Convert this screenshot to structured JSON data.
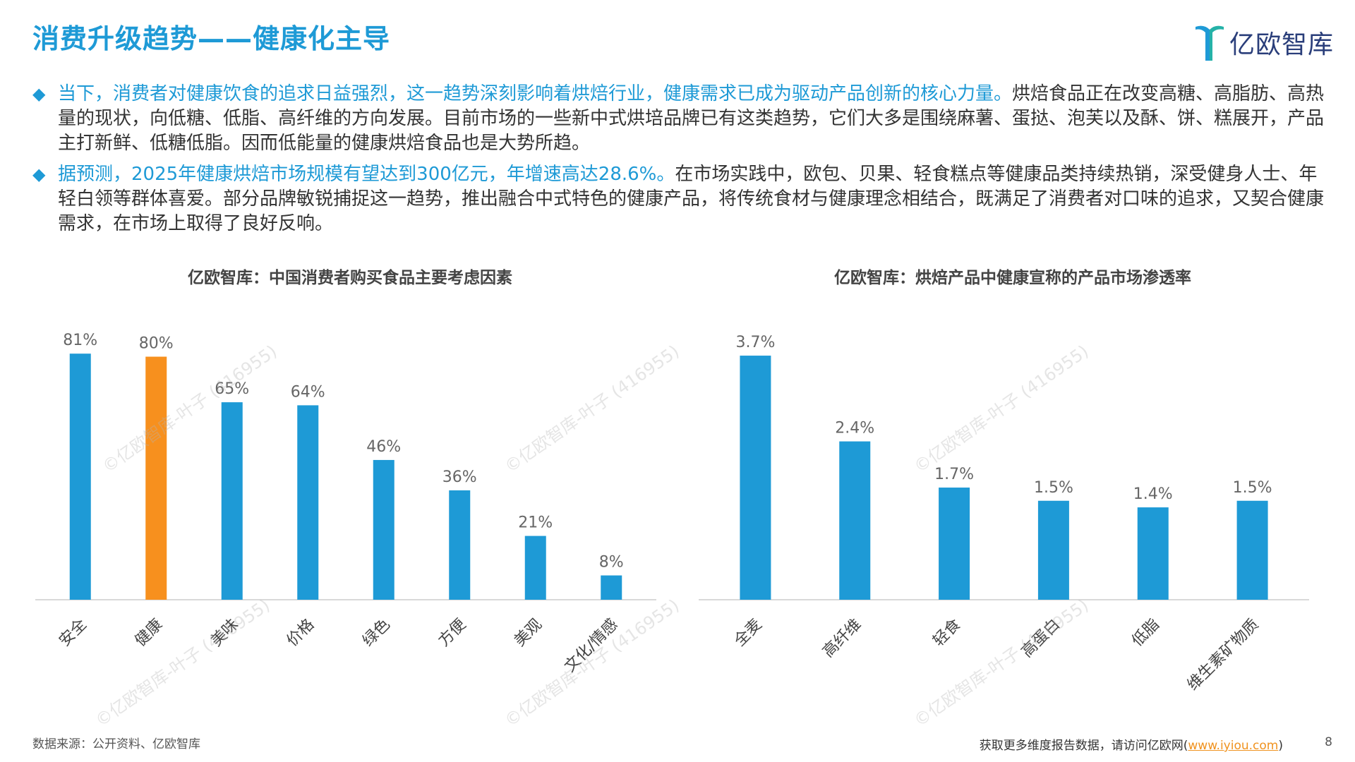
{
  "header": {
    "title": "消费升级趋势——健康化主导",
    "logo_text": "亿欧智库"
  },
  "paragraphs": [
    {
      "bullet": "◆",
      "highlight": "当下，消费者对健康饮食的追求日益强烈，这一趋势深刻影响着烘焙行业，健康需求已成为驱动产品创新的核心力量。",
      "text": "烘焙食品正在改变高糖、高脂肪、高热量的现状，向低糖、低脂、高纤维的方向发展。目前市场的一些新中式烘培品牌已有这类趋势，它们大多是围绕麻薯、蛋挞、泡芙以及酥、饼、糕展开，产品主打新鲜、低糖低脂。因而低能量的健康烘焙食品也是大势所趋。"
    },
    {
      "bullet": "◆",
      "highlight": "据预测，2025年健康烘焙市场规模有望达到300亿元，年增速高达28.6%。",
      "text": "在市场实践中，欧包、贝果、轻食糕点等健康品类持续热销，深受健身人士、年轻白领等群体喜爱。部分品牌敏锐捕捉这一趋势，推出融合中式特色的健康产品，将传统食材与健康理念相结合，既满足了消费者对口味的追求，又契合健康需求，在市场上取得了良好反响。"
    }
  ],
  "chart_data": [
    {
      "type": "bar",
      "title": "亿欧智库：中国消费者购买食品主要考虑因素",
      "categories": [
        "安全",
        "健康",
        "美味",
        "价格",
        "绿色",
        "方便",
        "美观",
        "文化/情感"
      ],
      "values": [
        81,
        80,
        65,
        64,
        46,
        36,
        21,
        8
      ],
      "value_labels": [
        "81%",
        "80%",
        "65%",
        "64%",
        "46%",
        "36%",
        "21%",
        "8%"
      ],
      "unit": "%",
      "ylim": [
        0,
        85
      ],
      "highlight_index": 1,
      "colors": {
        "default": "#1e9ad6",
        "highlight": "#f7901e"
      },
      "grid": false
    },
    {
      "type": "bar",
      "title": "亿欧智库：烘焙产品中健康宣称的产品市场渗透率",
      "categories": [
        "全麦",
        "高纤维",
        "轻食",
        "高蛋白",
        "低脂",
        "维生素矿物质"
      ],
      "values": [
        3.7,
        2.4,
        1.7,
        1.5,
        1.4,
        1.5
      ],
      "value_labels": [
        "3.7%",
        "2.4%",
        "1.7%",
        "1.5%",
        "1.4%",
        "1.5%"
      ],
      "unit": "%",
      "ylim": [
        0,
        4.0
      ],
      "colors": {
        "default": "#1e9ad6"
      },
      "grid": false
    }
  ],
  "footer": {
    "source": "数据来源：公开资料、亿欧智库",
    "more_text": "获取更多维度报告数据，请访问亿欧网(",
    "link_text": "www.iyiou.com",
    "more_close": ")",
    "page_number": "8"
  },
  "watermark": "©亿欧智库-叶子 (416955)",
  "colors": {
    "accent": "#1e9ad6",
    "highlight": "#f7901e",
    "logo": "#2a3e7a"
  }
}
